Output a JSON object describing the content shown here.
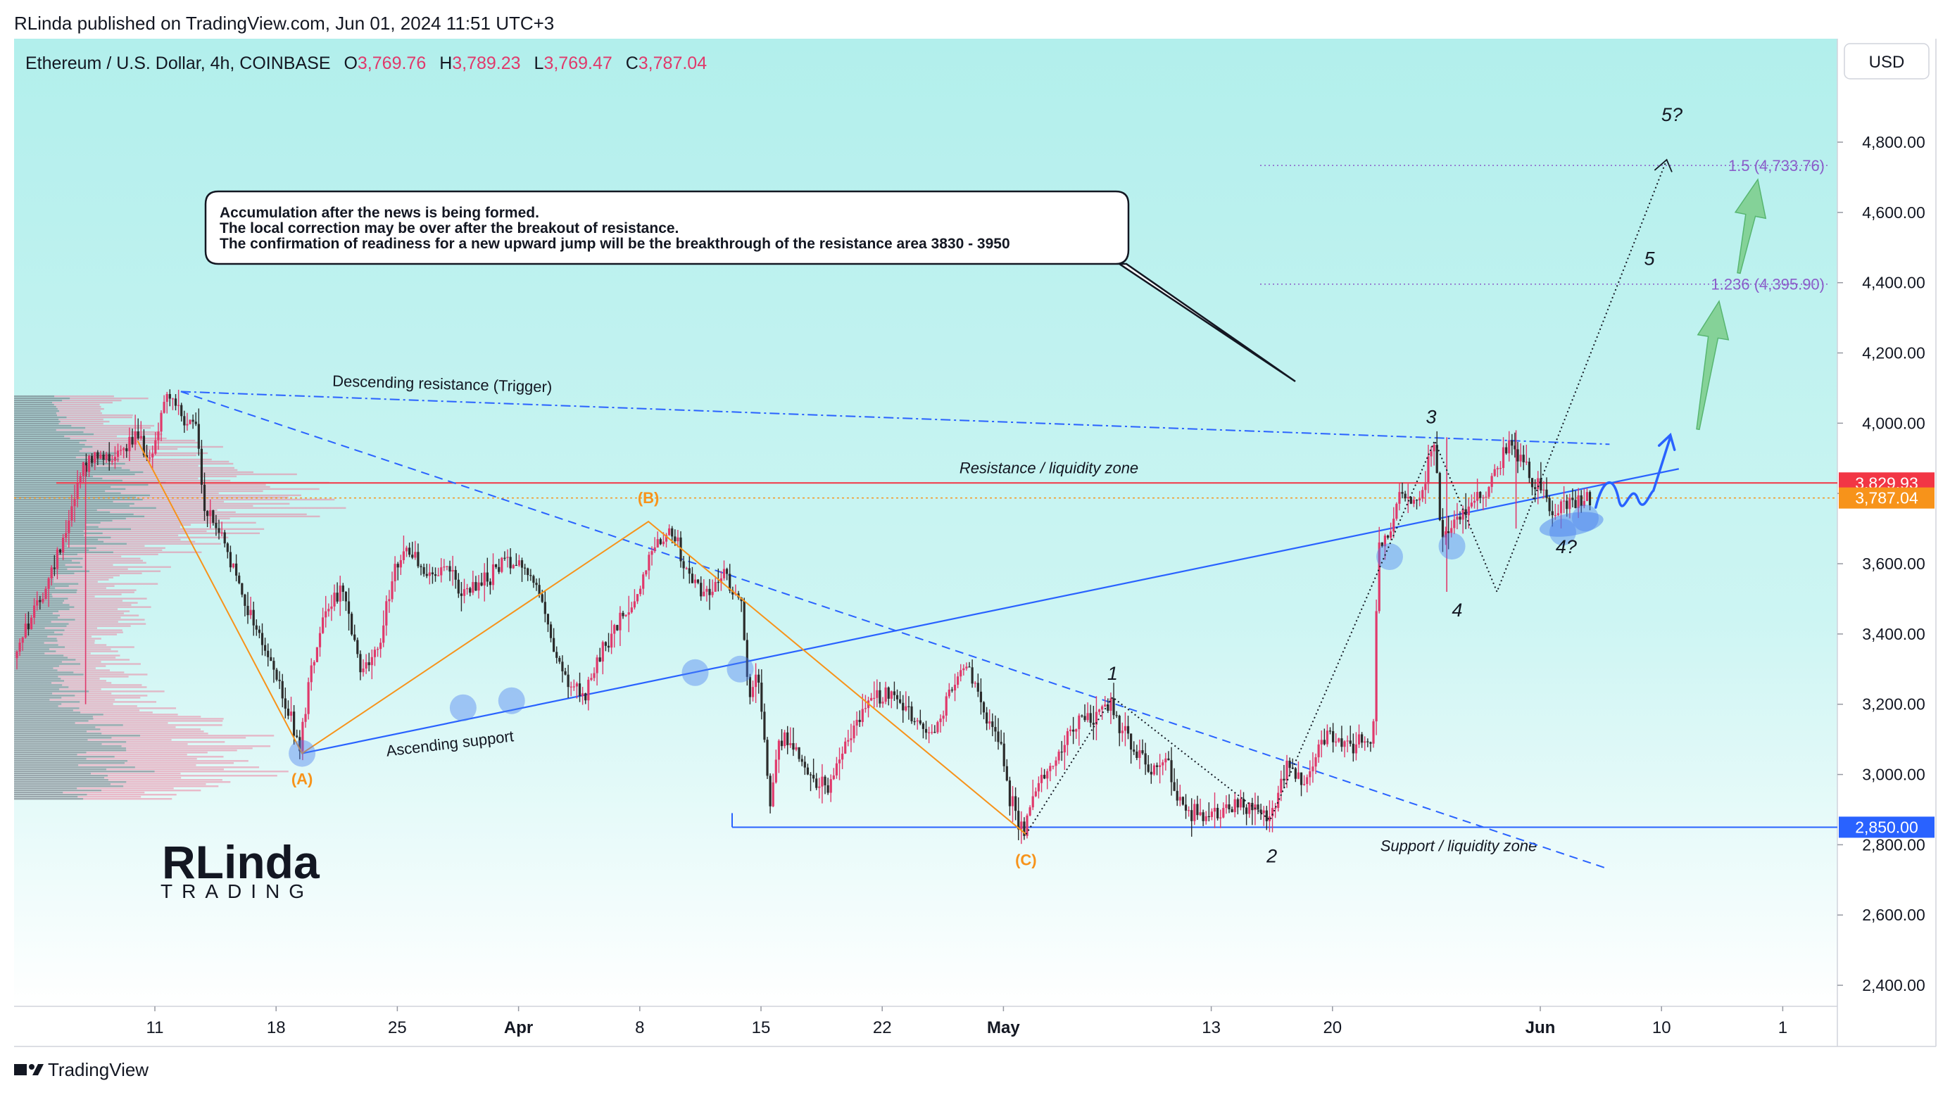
{
  "publisher_line": "RLinda published on TradingView.com, Jun 01, 2024 11:51 UTC+3",
  "footer_brand": "TradingView",
  "logo": {
    "text_main": "RLinda",
    "text_sub": "TRADING"
  },
  "currency_button": "USD",
  "chart_data": {
    "type": "candlestick",
    "symbol_header": {
      "title": "Ethereum / U.S. Dollar, 4h, COINBASE",
      "O_label": "O",
      "O": "3,769.76",
      "H_label": "H",
      "H": "3,789.23",
      "L_label": "L",
      "L": "3,769.47",
      "C_label": "C",
      "C": "3,787.04"
    },
    "y_axis": {
      "range": [
        2310,
        4990
      ],
      "ticks": [
        {
          "value": 2400,
          "label": "2,400.00"
        },
        {
          "value": 2600,
          "label": "2,600.00"
        },
        {
          "value": 2800,
          "label": "2,800.00"
        },
        {
          "value": 3000,
          "label": "3,000.00"
        },
        {
          "value": 3200,
          "label": "3,200.00"
        },
        {
          "value": 3400,
          "label": "3,400.00"
        },
        {
          "value": 3600,
          "label": "3,600.00"
        },
        {
          "value": 3800,
          "label": "3,800.00"
        },
        {
          "value": 4000,
          "label": "4,000.00"
        },
        {
          "value": 4200,
          "label": "4,200.00"
        },
        {
          "value": 4400,
          "label": "4,400.00"
        },
        {
          "value": 4600,
          "label": "4,600.00"
        },
        {
          "value": 4800,
          "label": "4,800.00"
        }
      ]
    },
    "x_axis": {
      "range_days": [
        -6,
        85
      ],
      "ticks": [
        {
          "day": 0,
          "label": "11",
          "bold": false
        },
        {
          "day": 7,
          "label": "18",
          "bold": false
        },
        {
          "day": 14,
          "label": "25",
          "bold": false
        },
        {
          "day": 21,
          "label": "Apr",
          "bold": true
        },
        {
          "day": 28,
          "label": "8",
          "bold": false
        },
        {
          "day": 35,
          "label": "15",
          "bold": false
        },
        {
          "day": 42,
          "label": "22",
          "bold": false
        },
        {
          "day": 49,
          "label": "May",
          "bold": true
        },
        {
          "day": 61,
          "label": "13",
          "bold": false
        },
        {
          "day": 68,
          "label": "20",
          "bold": false
        },
        {
          "day": 80,
          "label": "Jun",
          "bold": true
        },
        {
          "day": 87,
          "label": "10",
          "bold": false
        },
        {
          "day": 94,
          "label": "1",
          "bold": false
        }
      ]
    },
    "price_anchors": [
      [
        -8,
        3340
      ],
      [
        -6,
        3550
      ],
      [
        -5,
        3700
      ],
      [
        -4,
        3880
      ],
      [
        -2,
        3920
      ],
      [
        -1,
        3960
      ],
      [
        0,
        3900
      ],
      [
        0.5,
        4030
      ],
      [
        1,
        4090
      ],
      [
        2,
        3980
      ],
      [
        2.5,
        4010
      ],
      [
        3,
        3760
      ],
      [
        4,
        3680
      ],
      [
        5,
        3540
      ],
      [
        6,
        3420
      ],
      [
        7,
        3300
      ],
      [
        8,
        3160
      ],
      [
        8.5,
        3060
      ],
      [
        9,
        3250
      ],
      [
        10,
        3480
      ],
      [
        11,
        3520
      ],
      [
        12,
        3300
      ],
      [
        13,
        3340
      ],
      [
        14,
        3600
      ],
      [
        15,
        3640
      ],
      [
        16,
        3560
      ],
      [
        17,
        3580
      ],
      [
        18,
        3510
      ],
      [
        19,
        3540
      ],
      [
        20,
        3590
      ],
      [
        21,
        3620
      ],
      [
        22,
        3560
      ],
      [
        23,
        3400
      ],
      [
        24,
        3250
      ],
      [
        25,
        3220
      ],
      [
        26,
        3350
      ],
      [
        27,
        3430
      ],
      [
        28,
        3510
      ],
      [
        29,
        3660
      ],
      [
        30,
        3700
      ],
      [
        31,
        3560
      ],
      [
        32,
        3520
      ],
      [
        33,
        3560
      ],
      [
        34,
        3510
      ],
      [
        34.5,
        3200
      ],
      [
        35,
        3300
      ],
      [
        35.7,
        2920
      ],
      [
        36.2,
        3110
      ],
      [
        37,
        3090
      ],
      [
        38,
        3000
      ],
      [
        39,
        2950
      ],
      [
        40,
        3080
      ],
      [
        41,
        3180
      ],
      [
        42,
        3220
      ],
      [
        43,
        3240
      ],
      [
        44,
        3150
      ],
      [
        45,
        3100
      ],
      [
        46,
        3230
      ],
      [
        47,
        3310
      ],
      [
        48,
        3170
      ],
      [
        49,
        3090
      ],
      [
        49.5,
        2940
      ],
      [
        50.3,
        2830
      ],
      [
        51,
        2950
      ],
      [
        52,
        3030
      ],
      [
        53,
        3130
      ],
      [
        54,
        3160
      ],
      [
        55.3,
        3200
      ],
      [
        56,
        3130
      ],
      [
        57,
        3050
      ],
      [
        58,
        3010
      ],
      [
        58.5,
        3060
      ],
      [
        59.5,
        2900
      ],
      [
        61,
        2880
      ],
      [
        62,
        2900
      ],
      [
        63,
        2920
      ],
      [
        64.4,
        2870
      ],
      [
        65,
        2930
      ],
      [
        65.5,
        3040
      ],
      [
        66.5,
        2960
      ],
      [
        67,
        3050
      ],
      [
        68,
        3120
      ],
      [
        69,
        3080
      ],
      [
        70,
        3090
      ],
      [
        70.5,
        3100
      ],
      [
        70.8,
        3650
      ],
      [
        71.5,
        3700
      ],
      [
        72,
        3820
      ],
      [
        73,
        3760
      ],
      [
        73.5,
        3820
      ],
      [
        74,
        3960
      ],
      [
        74.5,
        3650
      ],
      [
        75,
        3700
      ],
      [
        76,
        3760
      ],
      [
        77,
        3800
      ],
      [
        78,
        3900
      ],
      [
        78.5,
        3960
      ],
      [
        79,
        3900
      ],
      [
        80,
        3820
      ],
      [
        81,
        3740
      ],
      [
        82,
        3780
      ],
      [
        83,
        3790
      ]
    ],
    "last_candle_day": 83,
    "levels": [
      {
        "name": "Resistance / liquidity zone",
        "value": 3829.93,
        "label": "3,829.93",
        "color": "#f23645"
      },
      {
        "name": "Support / liquidity zone",
        "value": 2850.0,
        "label": "2,850.00",
        "color": "#2962ff"
      },
      {
        "name": "last price",
        "value": 3787.04,
        "label": "3,787.04",
        "color": "#f7931a"
      }
    ],
    "fib_levels": [
      {
        "label": "1.5 (4,733.76)",
        "value": 4733.76
      },
      {
        "label": "1.236 (4,395.90)",
        "value": 4395.9
      }
    ],
    "lines": {
      "descending_resistance": {
        "label": "Descending resistance (Trigger)",
        "from": [
          1.5,
          4090
        ],
        "to": [
          84,
          3940
        ]
      },
      "ascending_support": {
        "label": "Ascending support",
        "from": [
          8.5,
          3060
        ],
        "to": [
          88,
          3870
        ]
      },
      "descending_dashed": {
        "from": [
          1.5,
          4090
        ],
        "to": [
          84,
          2730
        ]
      }
    },
    "abc_pattern": [
      {
        "label": "(A)",
        "day": 8.5,
        "value": 3060
      },
      {
        "label": "(B)",
        "day": 28.5,
        "value": 3720
      },
      {
        "label": "(C)",
        "day": 50.3,
        "value": 2830
      }
    ],
    "wave_labels": [
      {
        "label": "1",
        "day": 55.3,
        "value": 3270
      },
      {
        "label": "2",
        "day": 64.5,
        "value": 2750
      },
      {
        "label": "3",
        "day": 73.7,
        "value": 4000
      },
      {
        "label": "4",
        "day": 75.2,
        "value": 3450
      },
      {
        "label": "4?",
        "day": 81.5,
        "value": 3630
      },
      {
        "label": "5",
        "day": 86.3,
        "value": 4450
      },
      {
        "label": "5?",
        "day": 87.6,
        "value": 4860
      }
    ],
    "annotation": {
      "lines": [
        "Accumulation after the news is being formed.",
        "The local correction may be over after the breakout of resistance.",
        "The confirmation of readiness for a new upward jump will be the breakthrough of the resistance area 3830 - 3950"
      ]
    },
    "colors": {
      "bull": "#e0396b",
      "bear": "#2b2b2b",
      "abc": "#f7931a",
      "blue": "#2962ff",
      "fib": "#8a5dc9",
      "green_arrow": "#7fcf8f"
    }
  }
}
